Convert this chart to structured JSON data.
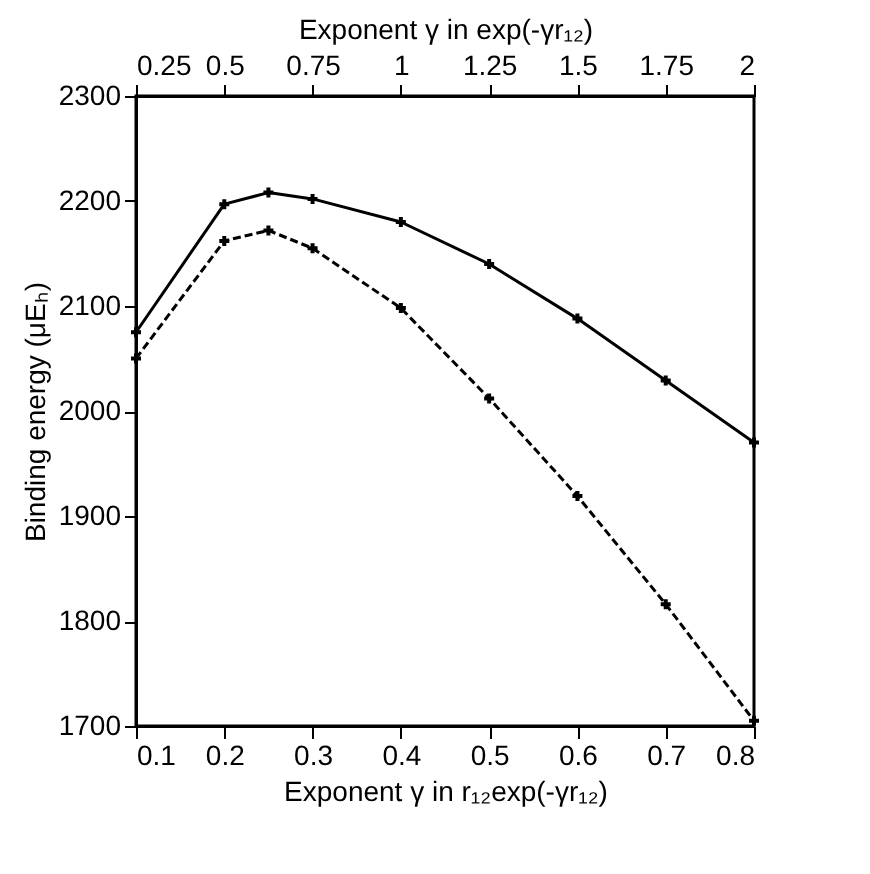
{
  "chart_data": {
    "type": "line",
    "xlabel": "Exponent γ in r₁₂exp(-γr₁₂)",
    "x2label": "Exponent γ in exp(-γr₁₂)",
    "ylabel": "Binding energy (μEₕ)",
    "xlim": [
      0.1,
      0.8
    ],
    "xticks": [
      0.1,
      0.2,
      0.3,
      0.4,
      0.5,
      0.6,
      0.7,
      0.8
    ],
    "x2lim": [
      0.25,
      2
    ],
    "x2ticks": [
      0.25,
      0.5,
      0.75,
      1,
      1.25,
      1.5,
      1.75,
      2
    ],
    "ylim": [
      1700,
      2300
    ],
    "yticks": [
      1700,
      1800,
      1900,
      2000,
      2100,
      2200,
      2300
    ],
    "marker": "cross",
    "series": [
      {
        "color": "#000000",
        "axis": "x2",
        "line_style": "solid",
        "x": [
          0.25,
          0.5,
          0.625,
          0.75,
          1,
          1.25,
          1.5,
          1.75,
          2
        ],
        "values": [
          2075,
          2197,
          2208,
          2202,
          2180,
          2140,
          2088,
          2029,
          1970
        ]
      },
      {
        "color": "#000000",
        "line_style": "dashed",
        "x": [
          0.1,
          0.2,
          0.25,
          0.3,
          0.4,
          0.5,
          0.6,
          0.7,
          0.8
        ],
        "values": [
          2050,
          2162,
          2172,
          2155,
          2098,
          2012,
          1919,
          1816,
          1705
        ]
      }
    ]
  }
}
